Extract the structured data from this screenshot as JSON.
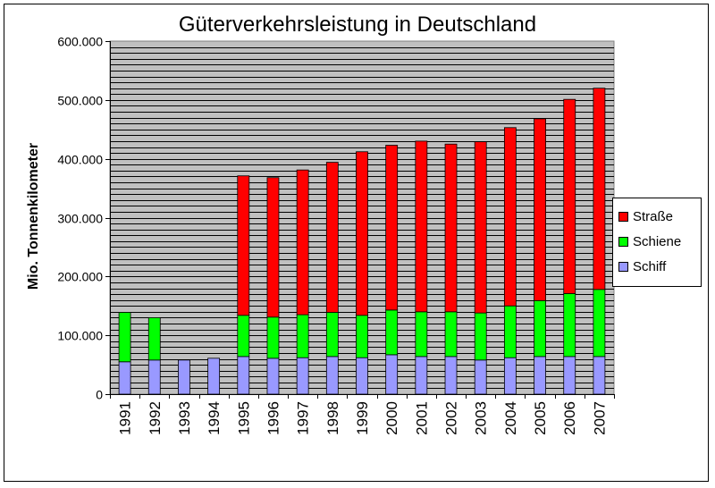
{
  "chart_data": {
    "type": "bar",
    "stacked": true,
    "title": "Güterverkehrsleistung in Deutschland",
    "ylabel": "Mio. Tonnenkilometer",
    "xlabel": "",
    "ylim": [
      0,
      600000
    ],
    "yticks": [
      "0",
      "100.000",
      "200.000",
      "300.000",
      "400.000",
      "500.000",
      "600.000"
    ],
    "ytick_values": [
      0,
      100000,
      200000,
      300000,
      400000,
      500000,
      600000
    ],
    "grid": true,
    "legend_position": "right",
    "categories": [
      "1991",
      "1992",
      "1993",
      "1994",
      "1995",
      "1996",
      "1997",
      "1998",
      "1999",
      "2000",
      "2001",
      "2002",
      "2003",
      "2004",
      "2005",
      "2006",
      "2007"
    ],
    "series": [
      {
        "name": "Schiff",
        "color": "#9999ff",
        "values": [
          55000,
          58000,
          58000,
          61000,
          64000,
          61000,
          62000,
          64000,
          62000,
          67000,
          64000,
          64000,
          58000,
          62000,
          64000,
          64000,
          64000
        ]
      },
      {
        "name": "Schiene",
        "color": "#00ff00",
        "values": [
          84000,
          72000,
          0,
          0,
          70000,
          70000,
          73000,
          75000,
          72000,
          76000,
          76000,
          76000,
          80000,
          88000,
          95000,
          107000,
          114000
        ]
      },
      {
        "name": "Straße",
        "color": "#ff0000",
        "values": [
          0,
          0,
          0,
          0,
          237000,
          237000,
          246000,
          255000,
          278000,
          280000,
          290000,
          285000,
          291000,
          303000,
          309000,
          330000,
          342000
        ]
      }
    ]
  }
}
